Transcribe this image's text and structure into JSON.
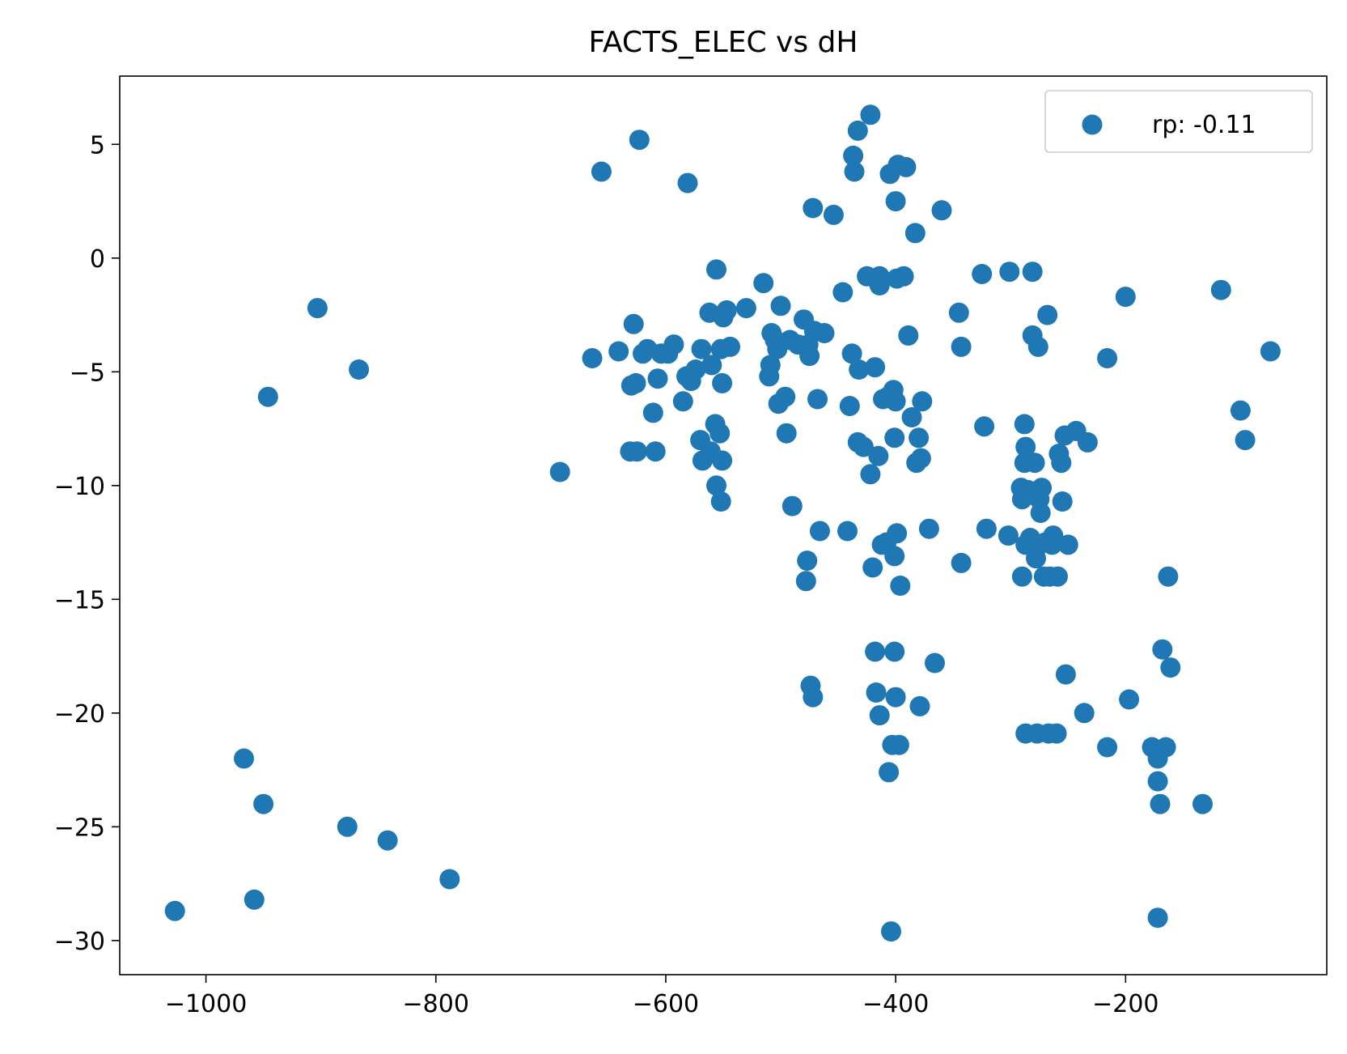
{
  "chart_data": {
    "type": "scatter",
    "title": "FACTS_ELEC vs dH",
    "xlabel": "",
    "ylabel": "",
    "xlim": [
      -1075,
      -25
    ],
    "ylim": [
      -31.5,
      8.0
    ],
    "xticks": [
      -1000,
      -800,
      -600,
      -400,
      -200
    ],
    "yticks": [
      5,
      0,
      -5,
      -10,
      -15,
      -20,
      -25,
      -30
    ],
    "grid": false,
    "legend": {
      "placement": "top-right"
    },
    "series": [
      {
        "name": "rp: -0.11",
        "color": "#1f77b4",
        "points": [
          [
            -1027,
            -28.7
          ],
          [
            -967,
            -22.0
          ],
          [
            -958,
            -28.2
          ],
          [
            -950,
            -24.0
          ],
          [
            -946,
            -6.1
          ],
          [
            -903,
            -2.2
          ],
          [
            -877,
            -25.0
          ],
          [
            -867,
            -4.9
          ],
          [
            -842,
            -25.6
          ],
          [
            -788,
            -27.3
          ],
          [
            -692,
            -9.4
          ],
          [
            -664,
            -4.4
          ],
          [
            -656,
            3.8
          ],
          [
            -641,
            -4.1
          ],
          [
            -631,
            -8.5
          ],
          [
            -630,
            -5.6
          ],
          [
            -628,
            -2.9
          ],
          [
            -626,
            -5.5
          ],
          [
            -625,
            -8.5
          ],
          [
            -623,
            5.2
          ],
          [
            -620,
            -4.2
          ],
          [
            -616,
            -4.0
          ],
          [
            -611,
            -6.8
          ],
          [
            -609,
            -8.5
          ],
          [
            -607,
            -5.3
          ],
          [
            -604,
            -4.2
          ],
          [
            -598,
            -4.2
          ],
          [
            -593,
            -3.8
          ],
          [
            -585,
            -6.3
          ],
          [
            -581,
            3.3
          ],
          [
            -582,
            -5.2
          ],
          [
            -578,
            -5.4
          ],
          [
            -574,
            -4.9
          ],
          [
            -570,
            -8.0
          ],
          [
            -568,
            -8.9
          ],
          [
            -569,
            -4.0
          ],
          [
            -562,
            -2.4
          ],
          [
            -560,
            -4.7
          ],
          [
            -561,
            -8.5
          ],
          [
            -556,
            -0.5
          ],
          [
            -557,
            -7.3
          ],
          [
            -556,
            -10.0
          ],
          [
            -553,
            -7.7
          ],
          [
            -552,
            -4.0
          ],
          [
            -551,
            -5.5
          ],
          [
            -551,
            -8.9
          ],
          [
            -552,
            -10.7
          ],
          [
            -550,
            -2.6
          ],
          [
            -547,
            -2.3
          ],
          [
            -544,
            -3.9
          ],
          [
            -530,
            -2.2
          ],
          [
            -515,
            -1.1
          ],
          [
            -510,
            -5.2
          ],
          [
            -509,
            -4.7
          ],
          [
            -508,
            -3.3
          ],
          [
            -505,
            -3.6
          ],
          [
            -503,
            -4.0
          ],
          [
            -502,
            -6.4
          ],
          [
            -500,
            -2.1
          ],
          [
            -496,
            -6.1
          ],
          [
            -495,
            -7.7
          ],
          [
            -492,
            -3.6
          ],
          [
            -490,
            -10.9
          ],
          [
            -485,
            -3.8
          ],
          [
            -480,
            -2.7
          ],
          [
            -478,
            -14.2
          ],
          [
            -477,
            -13.3
          ],
          [
            -476,
            -3.8
          ],
          [
            -475,
            -4.3
          ],
          [
            -474,
            -18.8
          ],
          [
            -472,
            -19.3
          ],
          [
            -472,
            2.2
          ],
          [
            -471,
            -3.2
          ],
          [
            -468,
            -6.2
          ],
          [
            -466,
            -12.0
          ],
          [
            -462,
            -3.3
          ],
          [
            -454,
            1.9
          ],
          [
            -446,
            -1.5
          ],
          [
            -442,
            -12.0
          ],
          [
            -440,
            -6.5
          ],
          [
            -438,
            -4.2
          ],
          [
            -437,
            4.5
          ],
          [
            -436,
            3.8
          ],
          [
            -433,
            -8.1
          ],
          [
            -433,
            5.6
          ],
          [
            -432,
            -4.9
          ],
          [
            -428,
            -8.3
          ],
          [
            -425,
            -0.8
          ],
          [
            -422,
            -9.5
          ],
          [
            -422,
            6.3
          ],
          [
            -420,
            -13.6
          ],
          [
            -418,
            -17.3
          ],
          [
            -418,
            -4.8
          ],
          [
            -417,
            -19.1
          ],
          [
            -415,
            -8.7
          ],
          [
            -414,
            -1.2
          ],
          [
            -414,
            -0.8
          ],
          [
            -414,
            -20.1
          ],
          [
            -412,
            -12.6
          ],
          [
            -411,
            -6.2
          ],
          [
            -408,
            -12.5
          ],
          [
            -407,
            -6.1
          ],
          [
            -406,
            -22.6
          ],
          [
            -405,
            3.7
          ],
          [
            -404,
            -29.6
          ],
          [
            -403,
            -21.4
          ],
          [
            -402,
            -5.8
          ],
          [
            -401,
            -13.1
          ],
          [
            -401,
            -7.9
          ],
          [
            -401,
            -17.3
          ],
          [
            -400,
            -19.3
          ],
          [
            -400,
            2.5
          ],
          [
            -400,
            -6.3
          ],
          [
            -399,
            -12.1
          ],
          [
            -399,
            -0.9
          ],
          [
            -398,
            4.1
          ],
          [
            -397,
            -21.4
          ],
          [
            -396,
            -14.4
          ],
          [
            -393,
            -0.8
          ],
          [
            -391,
            4.0
          ],
          [
            -389,
            -3.4
          ],
          [
            -386,
            -7.0
          ],
          [
            -383,
            1.1
          ],
          [
            -382,
            -9.0
          ],
          [
            -380,
            -7.9
          ],
          [
            -379,
            -19.7
          ],
          [
            -378,
            -8.8
          ],
          [
            -377,
            -6.3
          ],
          [
            -371,
            -11.9
          ],
          [
            -366,
            -17.8
          ],
          [
            -360,
            2.1
          ],
          [
            -345,
            -2.4
          ],
          [
            -343,
            -3.9
          ],
          [
            -343,
            -13.4
          ],
          [
            -325,
            -0.7
          ],
          [
            -323,
            -7.4
          ],
          [
            -321,
            -11.9
          ],
          [
            -302,
            -12.2
          ],
          [
            -301,
            -0.6
          ],
          [
            -291,
            -10.1
          ],
          [
            -290,
            -14.0
          ],
          [
            -290,
            -10.6
          ],
          [
            -288,
            -7.3
          ],
          [
            -288,
            -9.0
          ],
          [
            -287,
            -8.3
          ],
          [
            -287,
            -12.6
          ],
          [
            -287,
            -20.9
          ],
          [
            -285,
            -10.2
          ],
          [
            -283,
            -12.3
          ],
          [
            -281,
            -0.6
          ],
          [
            -281,
            -3.4
          ],
          [
            -279,
            -9.0
          ],
          [
            -278,
            -13.2
          ],
          [
            -277,
            -20.9
          ],
          [
            -277,
            -12.7
          ],
          [
            -276,
            -3.9
          ],
          [
            -275,
            -10.6
          ],
          [
            -274,
            -11.2
          ],
          [
            -273,
            -10.1
          ],
          [
            -271,
            -14.0
          ],
          [
            -270,
            -12.5
          ],
          [
            -268,
            -2.5
          ],
          [
            -267,
            -20.9
          ],
          [
            -266,
            -14.0
          ],
          [
            -264,
            -12.6
          ],
          [
            -263,
            -12.2
          ],
          [
            -260,
            -20.9
          ],
          [
            -259,
            -14.0
          ],
          [
            -258,
            -8.6
          ],
          [
            -256,
            -9.0
          ],
          [
            -255,
            -10.7
          ],
          [
            -253,
            -7.8
          ],
          [
            -252,
            -18.3
          ],
          [
            -250,
            -12.6
          ],
          [
            -243,
            -7.6
          ],
          [
            -236,
            -20.0
          ],
          [
            -233,
            -8.1
          ],
          [
            -216,
            -21.5
          ],
          [
            -216,
            -4.4
          ],
          [
            -200,
            -1.7
          ],
          [
            -197,
            -19.4
          ],
          [
            -177,
            -21.5
          ],
          [
            -172,
            -22.0
          ],
          [
            -172,
            -23.0
          ],
          [
            -172,
            -29.0
          ],
          [
            -170,
            -24.0
          ],
          [
            -168,
            -17.2
          ],
          [
            -165,
            -21.5
          ],
          [
            -163,
            -14.0
          ],
          [
            -161,
            -18.0
          ],
          [
            -133,
            -24.0
          ],
          [
            -117,
            -1.4
          ],
          [
            -100,
            -6.7
          ],
          [
            -96,
            -8.0
          ],
          [
            -74,
            -4.1
          ]
        ]
      }
    ]
  }
}
